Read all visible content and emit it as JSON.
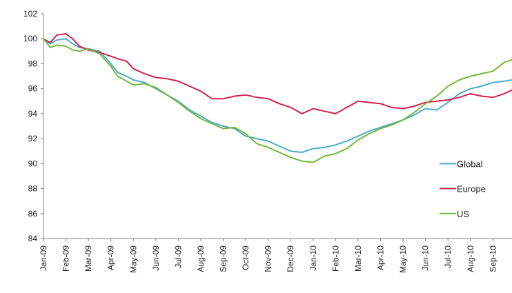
{
  "chart_data": {
    "type": "line",
    "title": "",
    "xlabel": "",
    "ylabel": "",
    "ylim": [
      84,
      102
    ],
    "yticks": [
      84,
      86,
      88,
      90,
      92,
      94,
      96,
      98,
      100,
      102
    ],
    "x_tick_labels": [
      "Jan-09",
      "Feb-09",
      "Mar-09",
      "Apr-09",
      "May-09",
      "Jun-09",
      "Jul-09",
      "Aug-09",
      "Sep-09",
      "Oct-09",
      "Nov-09",
      "Dec-09",
      "Jan-10",
      "Feb-10",
      "Mar-10",
      "Apr-10",
      "May-10",
      "Jun-10",
      "Jul-10",
      "Aug-10",
      "Sep-10"
    ],
    "x_range_months": [
      0,
      20.85
    ],
    "grid": false,
    "legend_position": "right",
    "series": [
      {
        "name": "Global",
        "color": "#4bacc6",
        "x": [
          0,
          0.3,
          0.6,
          1,
          1.3,
          1.6,
          2,
          2.5,
          3,
          3.3,
          3.7,
          4,
          4.5,
          5,
          5.5,
          6,
          6.5,
          7,
          7.5,
          8,
          8.5,
          9,
          9.5,
          10,
          10.5,
          11,
          11.5,
          12,
          12.5,
          13,
          13.5,
          14,
          14.5,
          15,
          15.5,
          16,
          16.5,
          17,
          17.5,
          18,
          18.5,
          19,
          19.5,
          20,
          20.5,
          20.85
        ],
        "y": [
          100,
          99.6,
          99.9,
          100.0,
          99.6,
          99.3,
          99.2,
          99.0,
          98.0,
          97.3,
          97.0,
          96.7,
          96.5,
          96.0,
          95.5,
          95.0,
          94.3,
          93.8,
          93.3,
          93.0,
          92.8,
          92.2,
          92.0,
          91.8,
          91.4,
          91.0,
          90.9,
          91.2,
          91.3,
          91.5,
          91.8,
          92.2,
          92.6,
          92.9,
          93.2,
          93.5,
          93.9,
          94.4,
          94.3,
          94.9,
          95.6,
          96.0,
          96.2,
          96.5,
          96.6,
          96.7
        ]
      },
      {
        "name": "Europe",
        "color": "#d62050",
        "x": [
          0,
          0.3,
          0.6,
          1,
          1.3,
          1.6,
          2,
          2.5,
          3,
          3.3,
          3.7,
          4,
          4.5,
          5,
          5.5,
          6,
          6.5,
          7,
          7.5,
          8,
          8.5,
          9,
          9.5,
          10,
          10.5,
          11,
          11.5,
          12,
          12.5,
          13,
          13.5,
          14,
          14.5,
          15,
          15.5,
          16,
          16.5,
          17,
          17.5,
          18,
          18.5,
          19,
          19.5,
          20,
          20.5,
          20.85
        ],
        "y": [
          100,
          99.7,
          100.3,
          100.4,
          100.0,
          99.4,
          99.1,
          98.9,
          98.6,
          98.4,
          98.2,
          97.6,
          97.2,
          96.9,
          96.8,
          96.6,
          96.2,
          95.8,
          95.2,
          95.2,
          95.4,
          95.5,
          95.3,
          95.2,
          94.8,
          94.5,
          94.0,
          94.4,
          94.2,
          94.0,
          94.5,
          95.0,
          94.9,
          94.8,
          94.5,
          94.4,
          94.6,
          94.9,
          95.0,
          95.1,
          95.3,
          95.6,
          95.4,
          95.3,
          95.6,
          95.9
        ]
      },
      {
        "name": "US",
        "color": "#72b83c",
        "x": [
          0,
          0.3,
          0.6,
          1,
          1.3,
          1.6,
          2,
          2.5,
          3,
          3.3,
          3.7,
          4,
          4.5,
          5,
          5.5,
          6,
          6.5,
          7,
          7.5,
          8,
          8.5,
          9,
          9.5,
          10,
          10.5,
          11,
          11.5,
          12,
          12.5,
          13,
          13.5,
          14,
          14.5,
          15,
          15.5,
          16,
          16.5,
          17,
          17.5,
          18,
          18.5,
          19,
          19.5,
          20,
          20.5,
          20.85
        ],
        "y": [
          100,
          99.3,
          99.5,
          99.4,
          99.1,
          99.0,
          99.2,
          98.8,
          97.8,
          97.0,
          96.6,
          96.3,
          96.4,
          96.1,
          95.5,
          94.9,
          94.2,
          93.6,
          93.2,
          92.8,
          92.9,
          92.4,
          91.6,
          91.3,
          90.9,
          90.5,
          90.2,
          90.1,
          90.6,
          90.8,
          91.2,
          91.9,
          92.4,
          92.8,
          93.1,
          93.5,
          94.1,
          94.8,
          95.4,
          96.2,
          96.7,
          97.0,
          97.2,
          97.4,
          98.1,
          98.3
        ]
      }
    ]
  }
}
